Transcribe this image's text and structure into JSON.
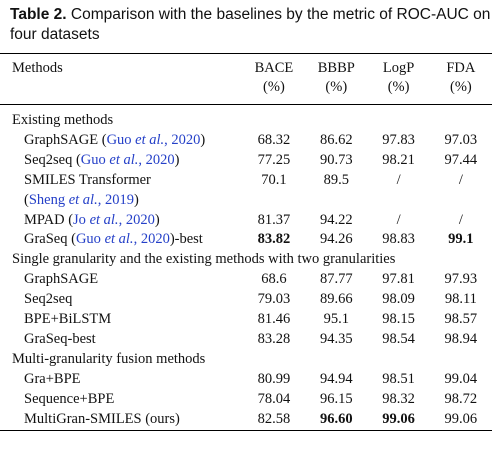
{
  "title": {
    "label": "Table 2.",
    "text": "Comparison with the baselines by the metric of ROC-AUC on four datasets"
  },
  "table": {
    "columns": [
      {
        "name": "Methods"
      },
      {
        "name": "BACE",
        "unit": "(%)"
      },
      {
        "name": "BBBP",
        "unit": "(%)"
      },
      {
        "name": "LogP",
        "unit": "(%)"
      },
      {
        "name": "FDA",
        "unit": "(%)"
      }
    ],
    "sections": [
      {
        "title": "Existing methods",
        "rows": [
          {
            "method": [
              [
                {
                  "text": "GraphSAGE ("
                },
                {
                  "text": "Guo ",
                  "style": "cite"
                },
                {
                  "text": "et al.",
                  "style": "cite-italic"
                },
                {
                  "text": ", 2020",
                  "style": "cite"
                },
                {
                  "text": ")"
                }
              ]
            ],
            "values": [
              "68.32",
              "86.62",
              "97.83",
              "97.03"
            ]
          },
          {
            "method": [
              [
                {
                  "text": "Seq2seq ("
                },
                {
                  "text": "Guo ",
                  "style": "cite"
                },
                {
                  "text": "et al.",
                  "style": "cite-italic"
                },
                {
                  "text": ", 2020",
                  "style": "cite"
                },
                {
                  "text": ")"
                }
              ]
            ],
            "values": [
              "77.25",
              "90.73",
              "98.21",
              "97.44"
            ]
          },
          {
            "method": [
              [
                {
                  "text": "SMILES Transformer"
                }
              ],
              [
                {
                  "text": "("
                },
                {
                  "text": "Sheng ",
                  "style": "cite"
                },
                {
                  "text": "et al.",
                  "style": "cite-italic"
                },
                {
                  "text": ", 2019",
                  "style": "cite"
                },
                {
                  "text": ")"
                }
              ]
            ],
            "values": [
              "70.1",
              "89.5",
              "/",
              "/"
            ]
          },
          {
            "method": [
              [
                {
                  "text": "MPAD ("
                },
                {
                  "text": "Jo ",
                  "style": "cite"
                },
                {
                  "text": "et al.",
                  "style": "cite-italic"
                },
                {
                  "text": ", 2020",
                  "style": "cite"
                },
                {
                  "text": ")"
                }
              ]
            ],
            "values": [
              "81.37",
              "94.22",
              "/",
              "/"
            ]
          },
          {
            "method": [
              [
                {
                  "text": "GraSeq ("
                },
                {
                  "text": "Guo ",
                  "style": "cite"
                },
                {
                  "text": "et al.",
                  "style": "cite-italic"
                },
                {
                  "text": ", 2020",
                  "style": "cite"
                },
                {
                  "text": ")-best"
                }
              ]
            ],
            "values": [
              {
                "text": "83.82",
                "bold": true
              },
              "94.26",
              "98.83",
              {
                "text": "99.1",
                "bold": true
              }
            ]
          }
        ]
      },
      {
        "title": "Single granularity and the existing methods with two granularities",
        "rows": [
          {
            "method": [
              [
                {
                  "text": "GraphSAGE"
                }
              ]
            ],
            "values": [
              "68.6",
              "87.77",
              "97.81",
              "97.93"
            ]
          },
          {
            "method": [
              [
                {
                  "text": "Seq2seq"
                }
              ]
            ],
            "values": [
              "79.03",
              "89.66",
              "98.09",
              "98.11"
            ]
          },
          {
            "method": [
              [
                {
                  "text": "BPE+BiLSTM"
                }
              ]
            ],
            "values": [
              "81.46",
              "95.1",
              "98.15",
              "98.57"
            ]
          },
          {
            "method": [
              [
                {
                  "text": "GraSeq-best"
                }
              ]
            ],
            "values": [
              "83.28",
              "94.35",
              "98.54",
              "98.94"
            ]
          }
        ]
      },
      {
        "title": "Multi-granularity fusion methods",
        "rows": [
          {
            "method": [
              [
                {
                  "text": "Gra+BPE"
                }
              ]
            ],
            "values": [
              "80.99",
              "94.94",
              "98.51",
              "99.04"
            ]
          },
          {
            "method": [
              [
                {
                  "text": "Sequence+BPE"
                }
              ]
            ],
            "values": [
              "78.04",
              "96.15",
              "98.32",
              "98.72"
            ]
          },
          {
            "method": [
              [
                {
                  "text": "MultiGran-SMILES (ours)"
                }
              ]
            ],
            "values": [
              "82.58",
              {
                "text": "96.60",
                "bold": true
              },
              {
                "text": "99.06",
                "bold": true
              },
              "99.06"
            ]
          }
        ]
      }
    ]
  }
}
